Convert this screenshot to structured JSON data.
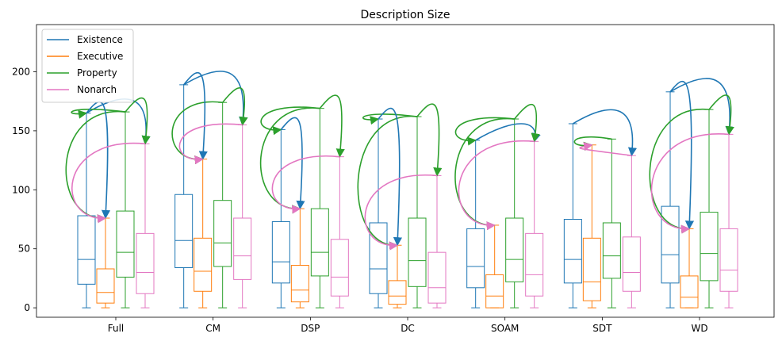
{
  "chart_data": {
    "type": "boxplot",
    "title": "Description Size",
    "xlabel": "",
    "ylabel": "",
    "ylim": [
      -8,
      240
    ],
    "yticks": [
      0,
      50,
      100,
      150,
      200
    ],
    "categories": [
      "Full",
      "CM",
      "DSP",
      "DC",
      "SOAM",
      "SDT",
      "WD"
    ],
    "legend": {
      "placement": "top-left"
    },
    "series": [
      {
        "name": "Existence",
        "color": "#1f77b4",
        "boxes": [
          {
            "min": 0,
            "q1": 20,
            "median": 41,
            "q3": 78,
            "max": 165
          },
          {
            "min": 0,
            "q1": 34,
            "median": 57,
            "q3": 96,
            "max": 189
          },
          {
            "min": 0,
            "q1": 21,
            "median": 39,
            "q3": 73,
            "max": 151
          },
          {
            "min": 0,
            "q1": 12,
            "median": 33,
            "q3": 72,
            "max": 160
          },
          {
            "min": 0,
            "q1": 17,
            "median": 35,
            "q3": 67,
            "max": 142
          },
          {
            "min": 0,
            "q1": 21,
            "median": 41,
            "q3": 75,
            "max": 156
          },
          {
            "min": 0,
            "q1": 21,
            "median": 45,
            "q3": 86,
            "max": 183
          }
        ]
      },
      {
        "name": "Executive",
        "color": "#ff7f0e",
        "boxes": [
          {
            "min": 0,
            "q1": 4,
            "median": 13,
            "q3": 33,
            "max": 76
          },
          {
            "min": 0,
            "q1": 14,
            "median": 31,
            "q3": 59,
            "max": 126
          },
          {
            "min": 0,
            "q1": 5,
            "median": 15,
            "q3": 36,
            "max": 84
          },
          {
            "min": 0,
            "q1": 3,
            "median": 10,
            "q3": 23,
            "max": 53
          },
          {
            "min": 0,
            "q1": 0,
            "median": 10,
            "q3": 28,
            "max": 70
          },
          {
            "min": 0,
            "q1": 6,
            "median": 22,
            "q3": 59,
            "max": 138
          },
          {
            "min": 0,
            "q1": 0,
            "median": 9,
            "q3": 27,
            "max": 67
          }
        ]
      },
      {
        "name": "Property",
        "color": "#2ca02c",
        "boxes": [
          {
            "min": 0,
            "q1": 26,
            "median": 47,
            "q3": 82,
            "max": 166
          },
          {
            "min": 0,
            "q1": 35,
            "median": 55,
            "q3": 91,
            "max": 174
          },
          {
            "min": 0,
            "q1": 27,
            "median": 47,
            "q3": 84,
            "max": 169
          },
          {
            "min": 0,
            "q1": 18,
            "median": 40,
            "q3": 76,
            "max": 162
          },
          {
            "min": 0,
            "q1": 22,
            "median": 41,
            "q3": 76,
            "max": 160
          },
          {
            "min": 0,
            "q1": 25,
            "median": 44,
            "q3": 72,
            "max": 143
          },
          {
            "min": 0,
            "q1": 23,
            "median": 46,
            "q3": 81,
            "max": 168
          }
        ]
      },
      {
        "name": "Nonarch",
        "color": "#e377c2",
        "boxes": [
          {
            "min": 0,
            "q1": 12,
            "median": 30,
            "q3": 63,
            "max": 139
          },
          {
            "min": 0,
            "q1": 24,
            "median": 44,
            "q3": 76,
            "max": 155
          },
          {
            "min": 0,
            "q1": 10,
            "median": 26,
            "q3": 58,
            "max": 128
          },
          {
            "min": 0,
            "q1": 4,
            "median": 17,
            "q3": 47,
            "max": 112
          },
          {
            "min": 0,
            "q1": 10,
            "median": 28,
            "q3": 63,
            "max": 141
          },
          {
            "min": 0,
            "q1": 14,
            "median": 30,
            "q3": 60,
            "max": 129
          },
          {
            "min": 0,
            "q1": 14,
            "median": 32,
            "q3": 67,
            "max": 147
          }
        ]
      }
    ],
    "arrows": [
      {
        "category": "Full",
        "from": "Existence",
        "from_value": 165,
        "to": "Nonarch",
        "to_value": 139,
        "color": "#1f77b4"
      },
      {
        "category": "Full",
        "from": "Property",
        "from_value": 166,
        "to": "Existence",
        "to_value": 165,
        "color": "#2ca02c"
      },
      {
        "category": "Full",
        "from": "Property",
        "from_value": 166,
        "to": "Executive",
        "to_value": 76,
        "color": "#2ca02c"
      },
      {
        "category": "Full",
        "from": "Property",
        "from_value": 166,
        "to": "Nonarch",
        "to_value": 139,
        "color": "#2ca02c"
      },
      {
        "category": "Full",
        "from": "Existence",
        "from_value": 165,
        "to": "Executive",
        "to_value": 76,
        "color": "#1f77b4"
      },
      {
        "category": "Full",
        "from": "Nonarch",
        "from_value": 139,
        "to": "Executive",
        "to_value": 76,
        "color": "#e377c2"
      },
      {
        "category": "CM",
        "from": "Existence",
        "from_value": 189,
        "to": "Nonarch",
        "to_value": 155,
        "color": "#1f77b4"
      },
      {
        "category": "CM",
        "from": "Property",
        "from_value": 174,
        "to": "Nonarch",
        "to_value": 155,
        "color": "#2ca02c"
      },
      {
        "category": "CM",
        "from": "Property",
        "from_value": 174,
        "to": "Executive",
        "to_value": 126,
        "color": "#2ca02c"
      },
      {
        "category": "CM",
        "from": "Existence",
        "from_value": 189,
        "to": "Executive",
        "to_value": 126,
        "color": "#1f77b4"
      },
      {
        "category": "CM",
        "from": "Nonarch",
        "from_value": 155,
        "to": "Executive",
        "to_value": 126,
        "color": "#e377c2"
      },
      {
        "category": "DSP",
        "from": "Property",
        "from_value": 169,
        "to": "Existence",
        "to_value": 151,
        "color": "#2ca02c"
      },
      {
        "category": "DSP",
        "from": "Property",
        "from_value": 169,
        "to": "Nonarch",
        "to_value": 128,
        "color": "#2ca02c"
      },
      {
        "category": "DSP",
        "from": "Property",
        "from_value": 169,
        "to": "Executive",
        "to_value": 84,
        "color": "#2ca02c"
      },
      {
        "category": "DSP",
        "from": "Existence",
        "from_value": 151,
        "to": "Executive",
        "to_value": 84,
        "color": "#1f77b4"
      },
      {
        "category": "DSP",
        "from": "Nonarch",
        "from_value": 128,
        "to": "Executive",
        "to_value": 84,
        "color": "#e377c2"
      },
      {
        "category": "DC",
        "from": "Property",
        "from_value": 162,
        "to": "Existence",
        "to_value": 160,
        "color": "#2ca02c"
      },
      {
        "category": "DC",
        "from": "Property",
        "from_value": 162,
        "to": "Nonarch",
        "to_value": 112,
        "color": "#2ca02c"
      },
      {
        "category": "DC",
        "from": "Property",
        "from_value": 162,
        "to": "Executive",
        "to_value": 53,
        "color": "#2ca02c"
      },
      {
        "category": "DC",
        "from": "Existence",
        "from_value": 160,
        "to": "Executive",
        "to_value": 53,
        "color": "#1f77b4"
      },
      {
        "category": "DC",
        "from": "Nonarch",
        "from_value": 112,
        "to": "Executive",
        "to_value": 53,
        "color": "#e377c2"
      },
      {
        "category": "SOAM",
        "from": "Existence",
        "from_value": 142,
        "to": "Nonarch",
        "to_value": 141,
        "color": "#1f77b4"
      },
      {
        "category": "SOAM",
        "from": "Property",
        "from_value": 160,
        "to": "Existence",
        "to_value": 142,
        "color": "#2ca02c"
      },
      {
        "category": "SOAM",
        "from": "Property",
        "from_value": 160,
        "to": "Nonarch",
        "to_value": 141,
        "color": "#2ca02c"
      },
      {
        "category": "SOAM",
        "from": "Property",
        "from_value": 160,
        "to": "Executive",
        "to_value": 70,
        "color": "#2ca02c"
      },
      {
        "category": "SOAM",
        "from": "Nonarch",
        "from_value": 141,
        "to": "Executive",
        "to_value": 70,
        "color": "#e377c2"
      },
      {
        "category": "SDT",
        "from": "Existence",
        "from_value": 156,
        "to": "Nonarch",
        "to_value": 129,
        "color": "#1f77b4"
      },
      {
        "category": "SDT",
        "from": "Property",
        "from_value": 143,
        "to": "Executive",
        "to_value": 138,
        "color": "#2ca02c"
      },
      {
        "category": "SDT",
        "from": "Nonarch",
        "from_value": 129,
        "to": "Executive",
        "to_value": 138,
        "color": "#e377c2"
      },
      {
        "category": "WD",
        "from": "Existence",
        "from_value": 183,
        "to": "Nonarch",
        "to_value": 147,
        "color": "#1f77b4"
      },
      {
        "category": "WD",
        "from": "Property",
        "from_value": 168,
        "to": "Nonarch",
        "to_value": 147,
        "color": "#2ca02c"
      },
      {
        "category": "WD",
        "from": "Property",
        "from_value": 168,
        "to": "Executive",
        "to_value": 67,
        "color": "#2ca02c"
      },
      {
        "category": "WD",
        "from": "Existence",
        "from_value": 183,
        "to": "Executive",
        "to_value": 67,
        "color": "#1f77b4"
      },
      {
        "category": "WD",
        "from": "Nonarch",
        "from_value": 147,
        "to": "Executive",
        "to_value": 67,
        "color": "#e377c2"
      }
    ]
  }
}
